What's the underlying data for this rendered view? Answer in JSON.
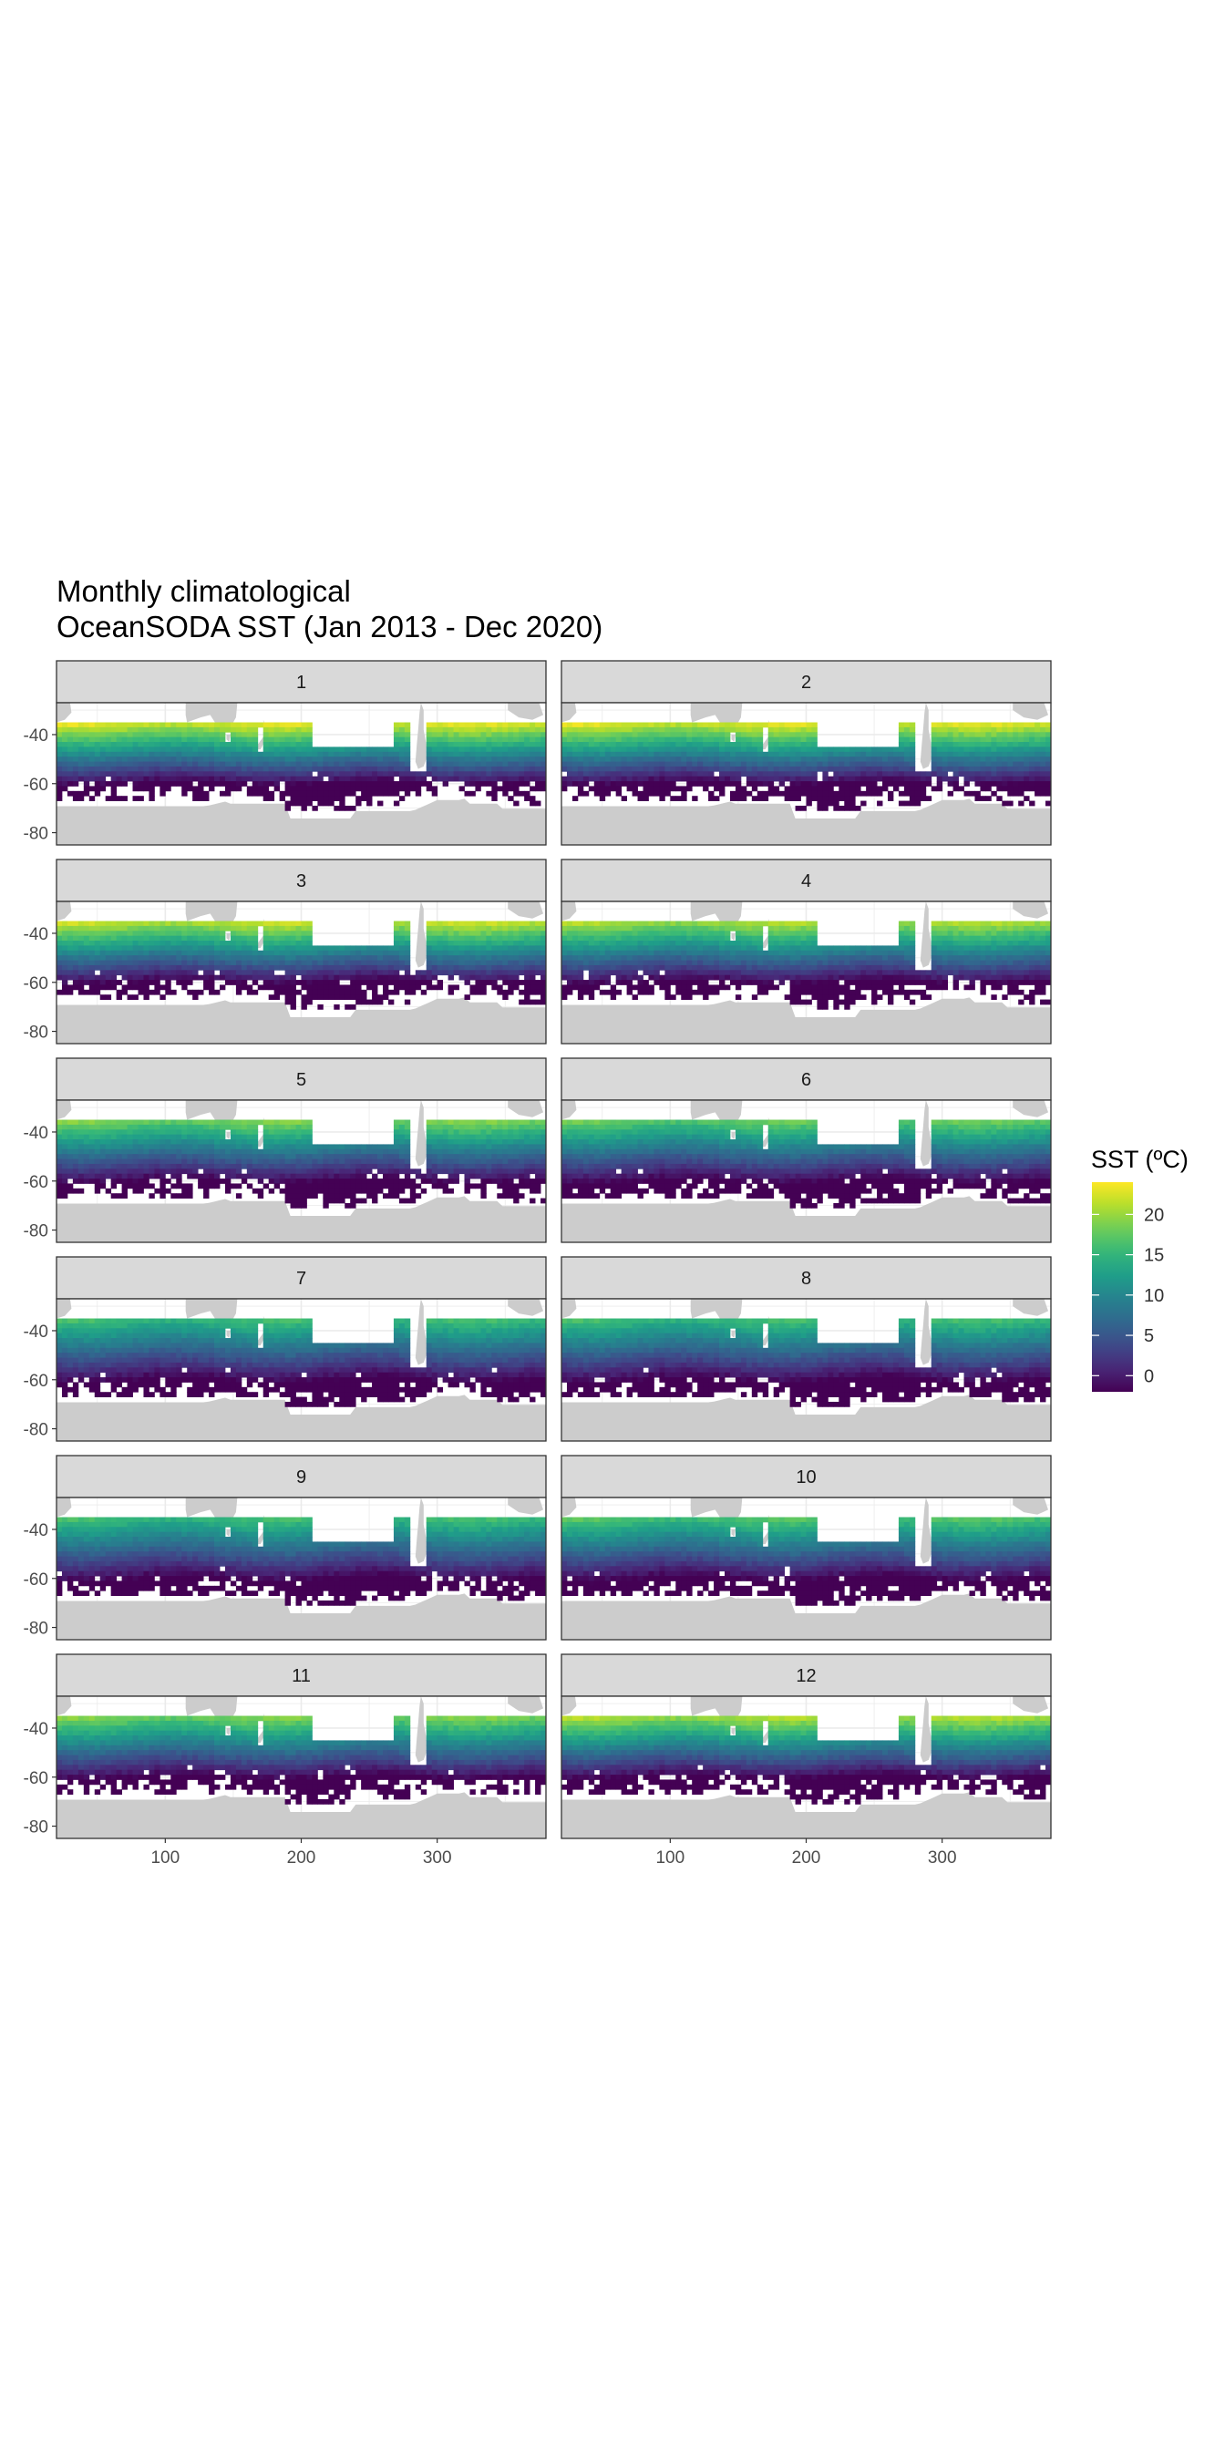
{
  "chart_data": {
    "type": "heatmap",
    "title": [
      "Monthly climatological",
      "OceanSODA SST (Jan 2013 - Dec 2020)"
    ],
    "xlabel": "",
    "ylabel": "",
    "panels": [
      "1",
      "2",
      "3",
      "4",
      "5",
      "6",
      "7",
      "8",
      "9",
      "10",
      "11",
      "12"
    ],
    "facet_layout": {
      "columns": 2,
      "rows": 6
    },
    "x_ticks": [
      100,
      200,
      300
    ],
    "y_ticks": [
      -40,
      -60,
      -80
    ],
    "xlim": [
      20,
      380
    ],
    "ylim": [
      -85,
      -27
    ],
    "data_lat_range": [
      -71,
      -35
    ],
    "legend": {
      "title": "SST (ºC)",
      "ticks": [
        20,
        15,
        10,
        5,
        0
      ],
      "range": [
        -2,
        24
      ],
      "placement": "right"
    },
    "colormap": "viridis",
    "land_color": "#cccccc",
    "grid": true,
    "approx_sst_by_month_north_edge": [
      23,
      23,
      22,
      21,
      19,
      18,
      16,
      16,
      16,
      17,
      19,
      21
    ]
  }
}
